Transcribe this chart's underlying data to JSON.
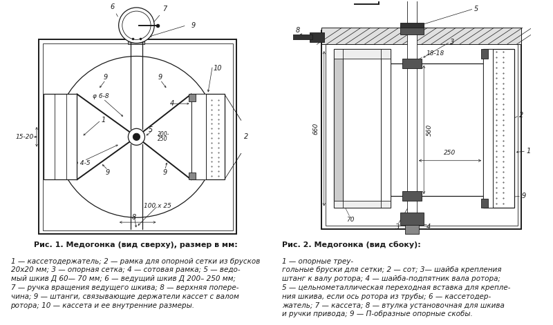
{
  "bg_color": "#ffffff",
  "fig_width": 8.0,
  "fig_height": 4.71,
  "line_color": "#1a1a1a",
  "text_color": "#1a1a1a",
  "label_fontsize": 7.0,
  "caption_bold_fontsize": 8.0,
  "caption_italic_fontsize": 7.5,
  "fig1_caption_bold": "Рис. 1. Медогонка (вид сверху), размер в мм:",
  "fig1_caption_italic": "1 — кассетодержатель; 2 — рамка для опорной сетки из брусков\n20х20 мм; 3 — опорная сетка; 4 — сотовая рамка; 5 — ведо-\nмый шкив Д 60— 70 мм; 6 — ведущий шкив Д 200– 250 мм;\n7 — ручка вращения ведущего шкива; 8 — верхняя попере-\nчина; 9 — штанги, связывающие держатели кассет с валом\nротора; 10 — кассета и ее внутренние размеры.",
  "fig2_caption_bold": "Рис. 2. Медогонка (вид сбоку):",
  "fig2_caption_italic": "1 — опорные треу-\nгольные бруски для сетки; 2 — сот; 3— шайба крепления\nштанг к валу ротора; 4 — шайба-подпятник вала ротора;\n5 — цельнометаллическая переходная вставка для крепле-\nния шкива, если ось ротора из трубы; 6 — кассетодер-\nжатель; 7 — кассета; 8 — втулка установочная для шкива\nи ручки привода; 9 — П-образные опорные скобы."
}
